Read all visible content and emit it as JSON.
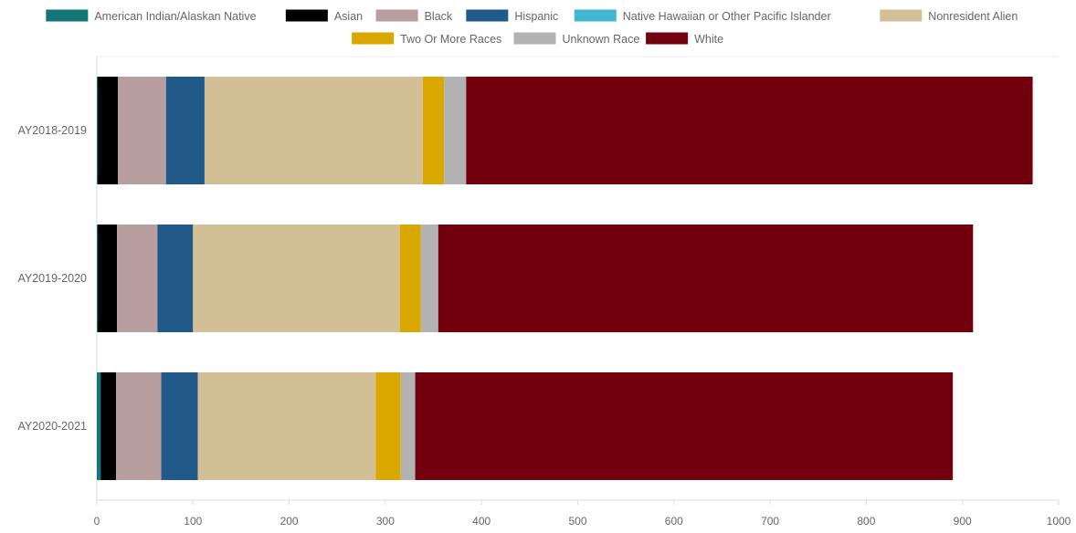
{
  "chart_data": {
    "type": "bar",
    "orientation": "horizontal",
    "stacked": true,
    "title": "",
    "xlabel": "",
    "ylabel": "",
    "xlim": [
      0,
      1000
    ],
    "xticks": [
      "0",
      "100",
      "200",
      "300",
      "400",
      "500",
      "600",
      "700",
      "800",
      "900",
      "1000"
    ],
    "grid": false,
    "legend_position": "top",
    "categories": [
      "AY2018-2019",
      "AY2019-2020",
      "AY2020-2021"
    ],
    "series": [
      {
        "name": "American Indian/Alaskan Native",
        "color": "#137679",
        "values": [
          1,
          1,
          4
        ]
      },
      {
        "name": "Asian",
        "color": "#000000",
        "values": [
          21,
          20,
          16
        ]
      },
      {
        "name": "Black",
        "color": "#b99ea0",
        "values": [
          50,
          42,
          47
        ]
      },
      {
        "name": "Hispanic",
        "color": "#215989",
        "values": [
          40,
          37,
          38
        ]
      },
      {
        "name": "Native Hawaiian or Other Pacific Islander",
        "color": "#42b6d0",
        "values": [
          0,
          0,
          0
        ]
      },
      {
        "name": "Nonresident Alien",
        "color": "#d2bf96",
        "values": [
          227,
          215,
          185
        ]
      },
      {
        "name": "Two Or More Races",
        "color": "#d8a800",
        "values": [
          22,
          22,
          26
        ]
      },
      {
        "name": "Unknown Race",
        "color": "#b1b2b1",
        "values": [
          23,
          18,
          15
        ]
      },
      {
        "name": "White",
        "color": "#73000d",
        "values": [
          589,
          556,
          559
        ]
      }
    ]
  }
}
